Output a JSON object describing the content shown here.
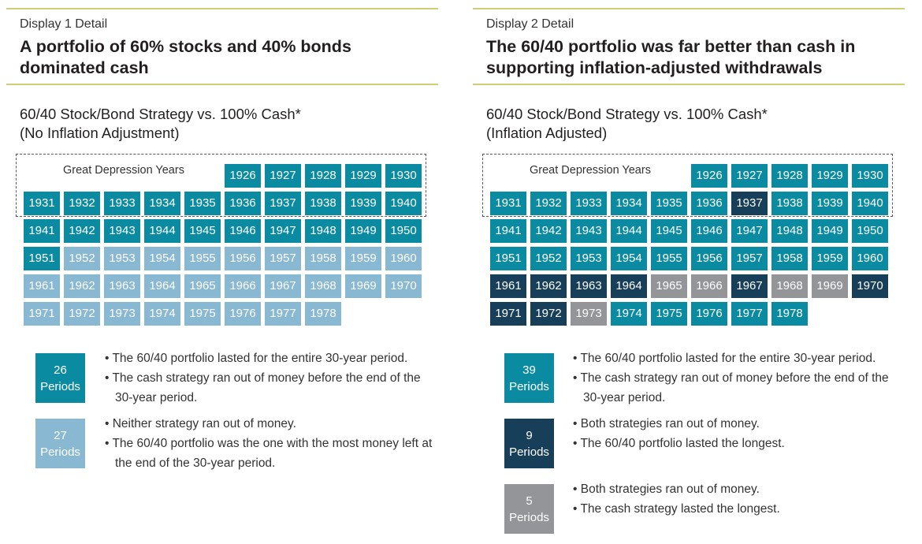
{
  "colors": {
    "teal": "#0b8ba1",
    "light": "#88b8d2",
    "navy": "#173f5a",
    "gray": "#939598"
  },
  "chart_data": [
    {
      "type": "table",
      "kicker": "Display 1 Detail",
      "title": "A portfolio of 60% stocks and 40% bonds dominated cash",
      "subtitle1": "60/40 Stock/Bond Strategy vs. 100% Cash*",
      "subtitle2": "(No Inflation Adjustment)",
      "highlight_label": "Great Depression Years",
      "cells": {
        "teal": [
          1926,
          1927,
          1928,
          1929,
          1930,
          1931,
          1932,
          1933,
          1934,
          1935,
          1936,
          1937,
          1938,
          1939,
          1940,
          1941,
          1942,
          1943,
          1944,
          1945,
          1946,
          1947,
          1948,
          1949,
          1950,
          1951
        ],
        "navy": [],
        "gray": []
      },
      "legend": [
        {
          "color": "teal",
          "count": "26",
          "unit": "Periods",
          "bullets": [
            "The 60/40 portfolio lasted for the entire 30-year period.",
            "The cash strategy ran out of money before the end of the 30-year period."
          ]
        },
        {
          "color": "light",
          "count": "27",
          "unit": "Periods",
          "bullets": [
            "Neither strategy ran out of money.",
            "The 60/40 portfolio was the one with the most money left at the end of the 30-year period."
          ]
        }
      ],
      "default_color": "light"
    },
    {
      "type": "table",
      "kicker": "Display 2 Detail",
      "title": "The 60/40 portfolio was far better than cash in supporting inflation-adjusted withdrawals",
      "subtitle1": "60/40 Stock/Bond Strategy vs. 100% Cash*",
      "subtitle2": "(Inflation Adjusted)",
      "highlight_label": "Great Depression Years",
      "cells": {
        "teal": [],
        "navy": [
          1937,
          1961,
          1962,
          1963,
          1964,
          1967,
          1970,
          1971,
          1972
        ],
        "gray": [
          1965,
          1966,
          1968,
          1969,
          1973
        ]
      },
      "legend": [
        {
          "color": "teal",
          "count": "39",
          "unit": "Periods",
          "bullets": [
            "The 60/40 portfolio lasted for the entire 30-year period.",
            "The cash strategy ran out of money before the end of the 30-year period."
          ]
        },
        {
          "color": "navy",
          "count": "9",
          "unit": "Periods",
          "bullets": [
            "Both strategies ran out of money.",
            "The 60/40 portfolio lasted the longest."
          ]
        },
        {
          "color": "gray",
          "count": "5",
          "unit": "Periods",
          "bullets": [
            "Both strategies ran out of money.",
            "The cash strategy lasted the longest."
          ]
        }
      ],
      "default_color": "teal"
    }
  ]
}
